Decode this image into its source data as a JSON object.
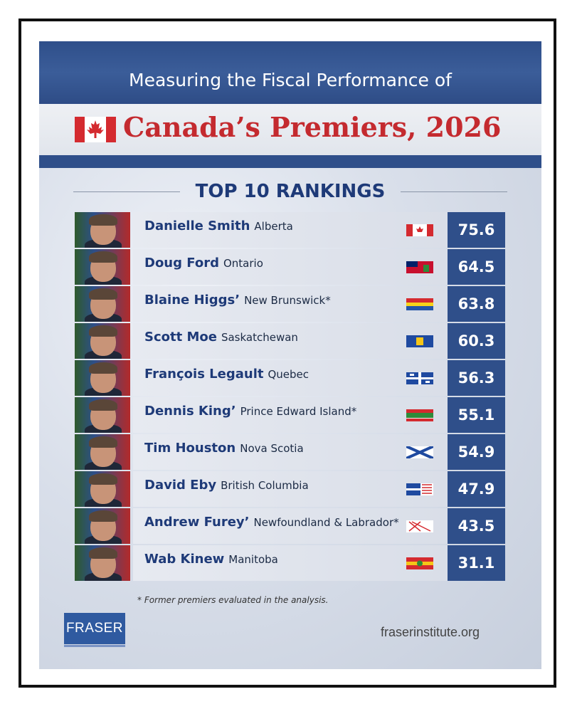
{
  "header": {
    "title_line1": "Measuring the Fiscal Performance of",
    "title_line2": "Canada’s Premiers, 2026",
    "section_title": "TOP 10 RANKINGS"
  },
  "colors": {
    "navy": "#2f4f8a",
    "red": "#c42a2f",
    "text_blue": "#1e3a78"
  },
  "rankings": [
    {
      "name": "Danielle Smith",
      "province": "Alberta",
      "score": "75.6",
      "flag_icon": "canada-flag-icon"
    },
    {
      "name": "Doug Ford",
      "province": "Ontario",
      "score": "64.5",
      "flag_icon": "ontario-flag-icon"
    },
    {
      "name": "Blaine Higgs’",
      "province": "New Brunswick*",
      "score": "63.8",
      "flag_icon": "new-brunswick-flag-icon"
    },
    {
      "name": "Scott Moe",
      "province": "Saskatchewan",
      "score": "60.3",
      "flag_icon": "saskatchewan-flag-icon"
    },
    {
      "name": "François Legault",
      "province": "Quebec",
      "score": "56.3",
      "flag_icon": "quebec-flag-icon"
    },
    {
      "name": "Dennis King’",
      "province": "Prince Edward Island*",
      "score": "55.1",
      "flag_icon": "pei-flag-icon"
    },
    {
      "name": "Tim Houston",
      "province": "Nova Scotia",
      "score": "54.9",
      "flag_icon": "nova-scotia-flag-icon"
    },
    {
      "name": "David Eby",
      "province": "British Columbia",
      "score": "47.9",
      "flag_icon": "bc-flag-icon"
    },
    {
      "name": "Andrew Furey’",
      "province": "Newfoundland & Labrador*",
      "score": "43.5",
      "flag_icon": "newfoundland-flag-icon"
    },
    {
      "name": "Wab Kinew",
      "province": "Manitoba",
      "score": "31.1",
      "flag_icon": "manitoba-flag-icon"
    }
  ],
  "footer": {
    "note": "* Former premiers evaluated in the analysis.",
    "logo_text": "FRASER",
    "website": "fraserinstitute.org"
  }
}
